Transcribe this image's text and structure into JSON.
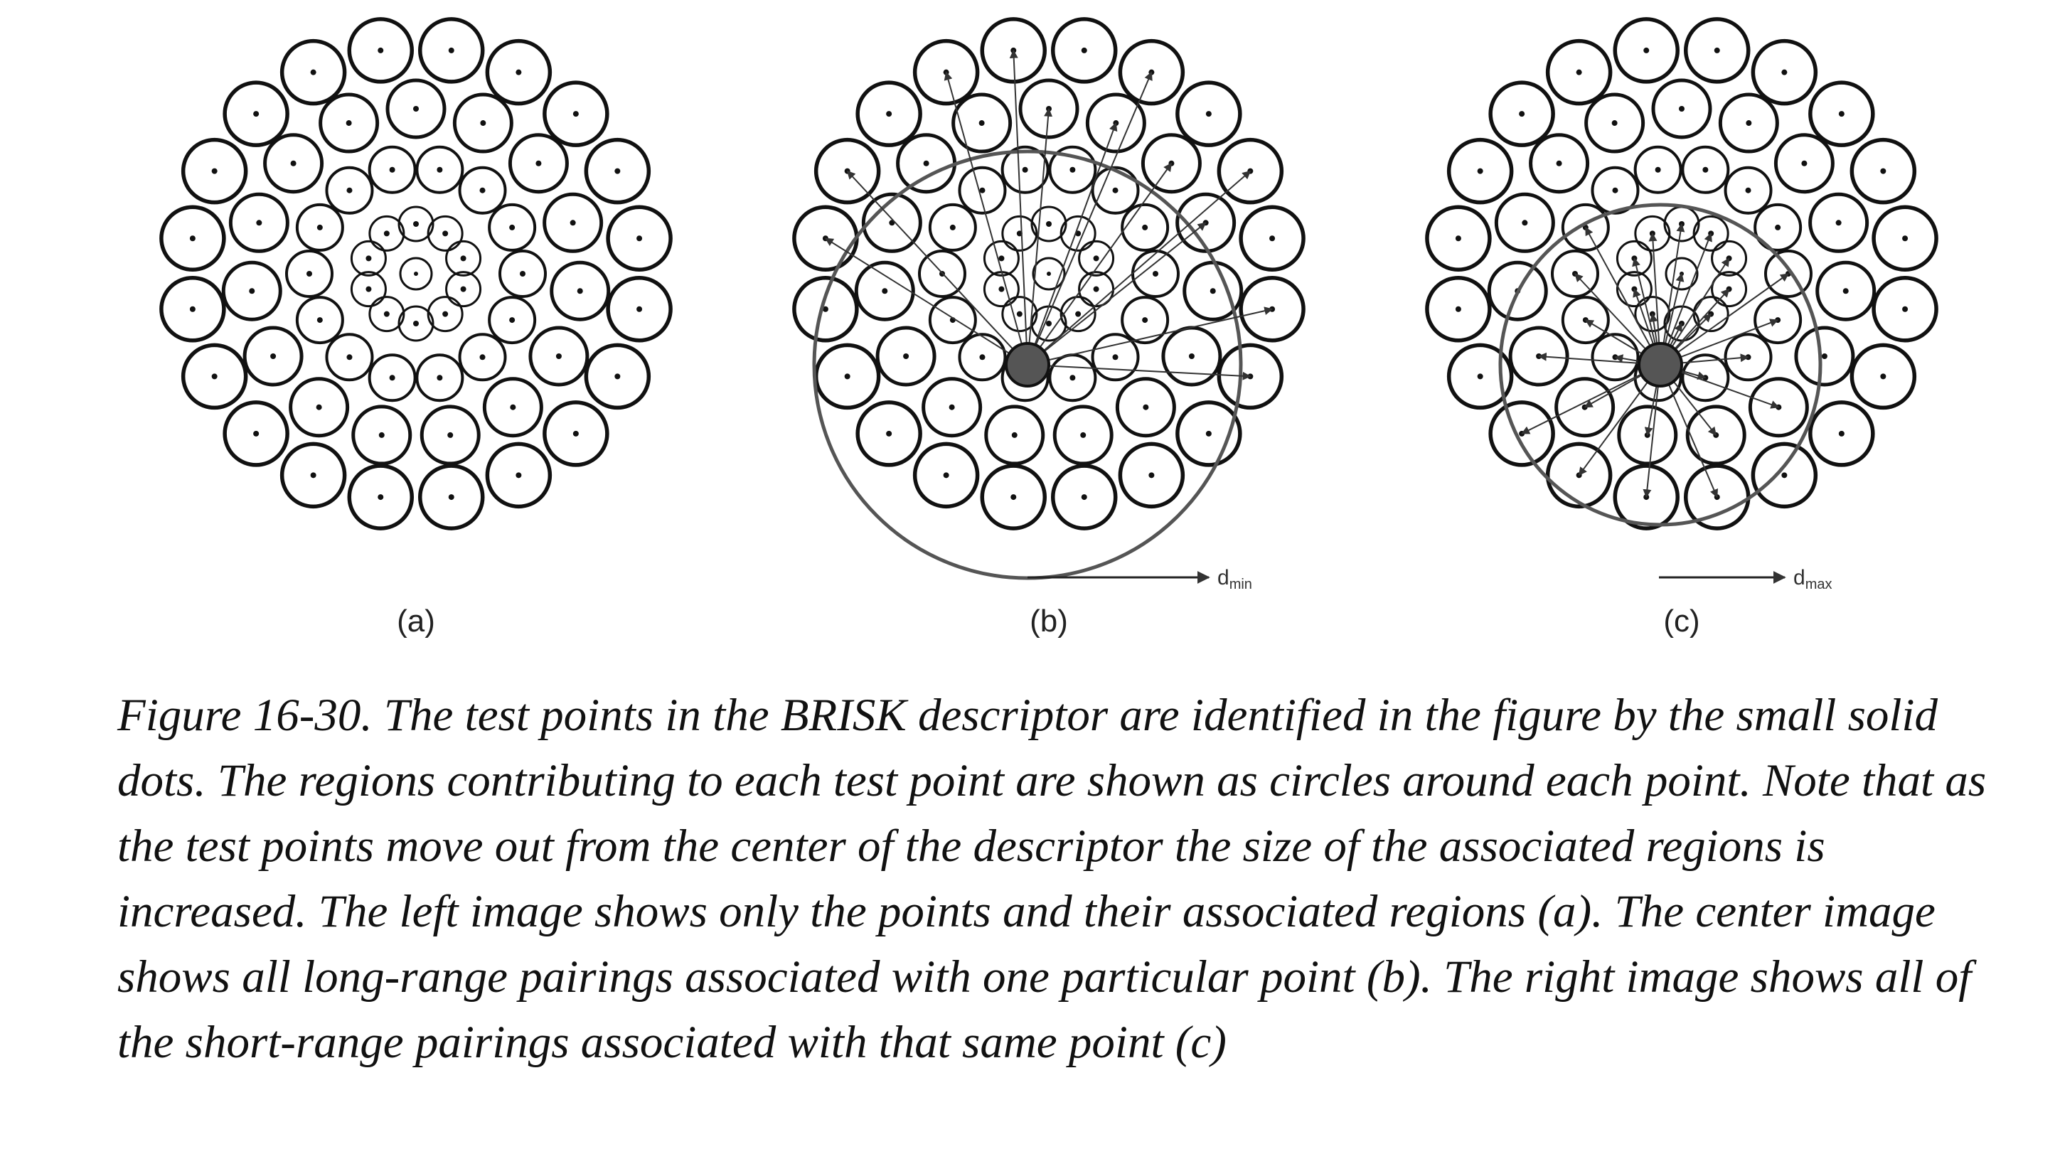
{
  "figure": {
    "panels": [
      {
        "id": "a",
        "label": "(a)",
        "arrow_label": "",
        "arrow_sub": "",
        "pairing": "none"
      },
      {
        "id": "b",
        "label": "(b)",
        "arrow_label": "d",
        "arrow_sub": "min",
        "pairing": "long-range"
      },
      {
        "id": "c",
        "label": "(c)",
        "arrow_label": "d",
        "arrow_sub": "max",
        "pairing": "short-range"
      }
    ],
    "colors": {
      "stroke": "#111111",
      "highlight": "#555555",
      "pairing_line": "#333333"
    }
  },
  "caption": {
    "text": "Figure 16-30. The test points in the BRISK descriptor are identified in the figure by the small solid dots. The regions contributing to each test point are shown as circles around each point. Note that as the test points move out from the center of the descriptor the size of the associated regions is increased. The left image shows only the points and their associated regions (a). The center image shows all long-range pairings associated with one particular point (b). The right image shows all of the short-range pairings associated with that same point (c)"
  }
}
